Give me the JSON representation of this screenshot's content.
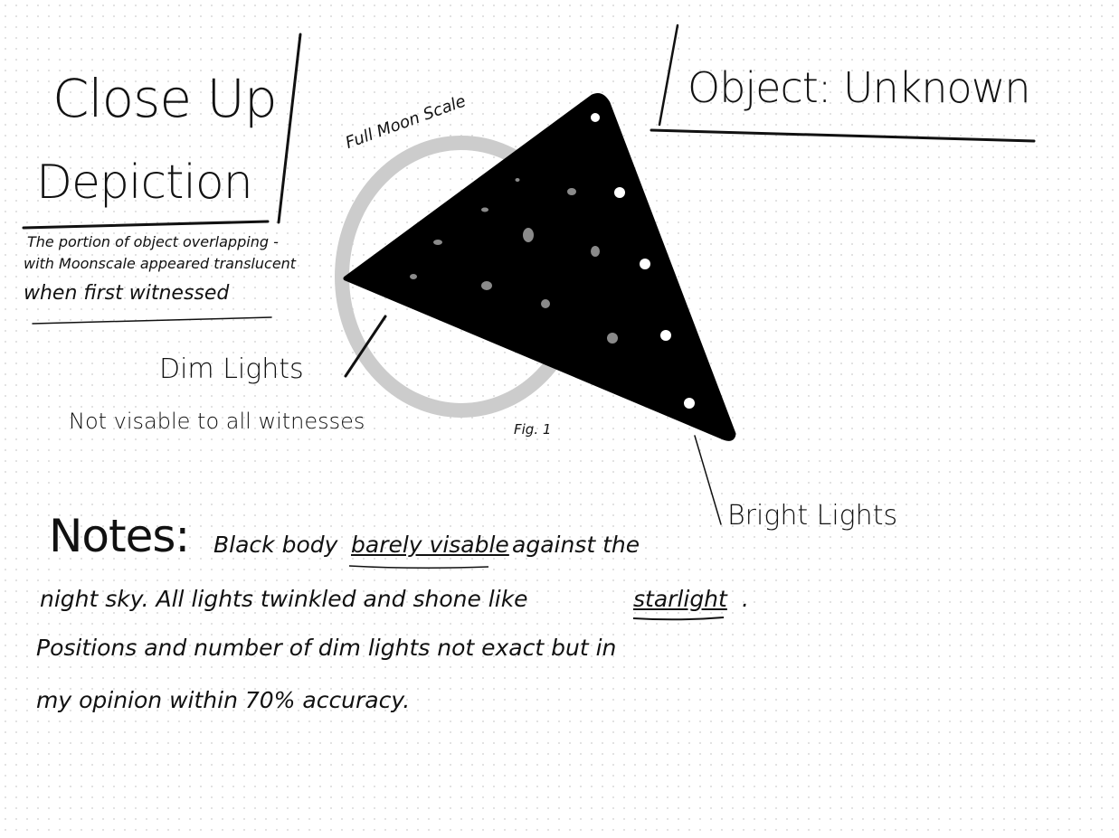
{
  "title": {
    "line1": "Close Up",
    "line2": "Depiction"
  },
  "object_title": "Object: Unknown",
  "overlap_note": {
    "line1": "The portion of object overlapping -",
    "line2": "with Moonscale appeared translucent",
    "line3": "when first witnessed"
  },
  "moon_scale_label": "Full Moon Scale",
  "dim_lights_label": "Dim Lights",
  "not_visible_label": "Not visable to all witnesses",
  "figure_label": "Fig. 1",
  "bright_lights_label": "Bright Lights",
  "notes": {
    "heading": "Notes:",
    "line1_start": "Black body",
    "line1_underlined": "barely visable",
    "line1_end": "against the",
    "line2_start": "night sky. All lights twinkled and shone like",
    "line2_underlined": "starlight",
    "line2_end": ".",
    "line3": "Positions and number of dim lights not exact but in",
    "line4": "my opinion within 70% accuracy."
  },
  "colors": {
    "ink": "#111111",
    "object_body": "#000000",
    "moon_scale": "#cccccc",
    "bright_light": "#ffffff",
    "dim_light": "#8a8a8a"
  }
}
